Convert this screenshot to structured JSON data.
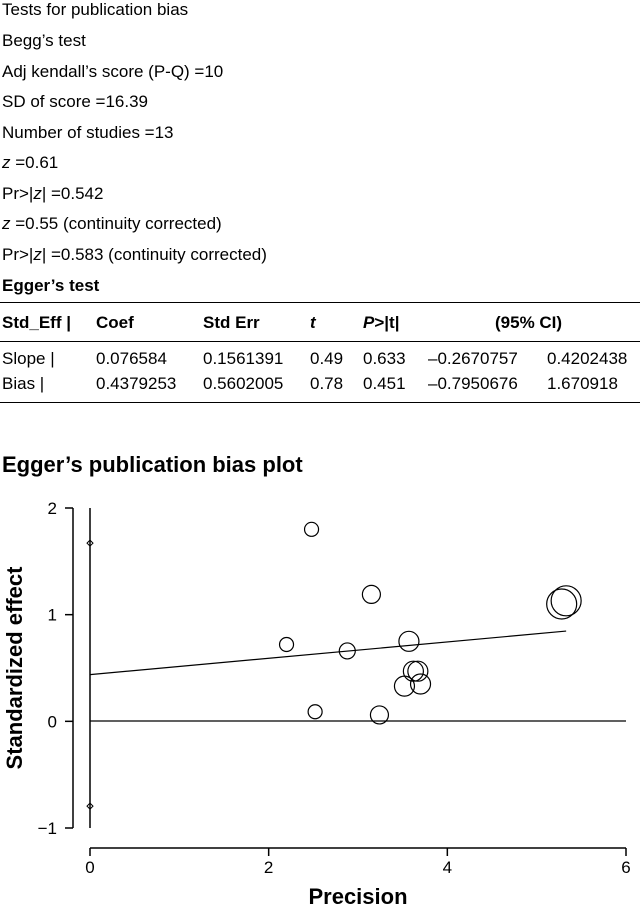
{
  "begg": {
    "heading": "Tests for publication bias",
    "title": "Begg’s test",
    "kendall": "Adj kendall’s score (P-Q) =10",
    "sd": "SD of score =16.39",
    "n": "Number of studies =13",
    "z_var": "z",
    "z_rest": " =0.61",
    "pr_prefix": "Pr>|",
    "pr_var": "z",
    "pr_rest": "| =0.542",
    "zc_var": "z",
    "zc_rest": " =0.55 (continuity corrected)",
    "prc_prefix": "Pr>|",
    "prc_var": "z",
    "prc_rest": "| =0.583 (continuity corrected)"
  },
  "egger": {
    "title": "Egger’s test",
    "headers": {
      "std_eff": "Std_Eff |",
      "coef": "Coef",
      "stderr": "Std Err",
      "t": "t",
      "p_var": "P",
      "p_rest": ">|t|",
      "ci": "(95% CI)"
    },
    "rows": [
      {
        "label": "Slope |",
        "coef": "0.076584",
        "stderr": "0.1561391",
        "t": "0.49",
        "p": "0.633",
        "lo": "–0.2670757",
        "hi": "0.4202438"
      },
      {
        "label": "Bias |",
        "coef": "0.4379253",
        "stderr": "0.5602005",
        "t": "0.78",
        "p": "0.451",
        "lo": "–0.7950676",
        "hi": "1.670918"
      }
    ]
  },
  "chart_data": {
    "type": "scatter",
    "title": "Egger’s publication bias plot",
    "xlabel": "Precision",
    "ylabel": "Standardized effect",
    "xlim": [
      0,
      6
    ],
    "ylim": [
      -1,
      2
    ],
    "xticks": [
      0,
      2,
      4,
      6
    ],
    "yticks": [
      -1,
      0,
      1,
      2
    ],
    "grid": false,
    "points": [
      {
        "x": 2.2,
        "y": 0.72,
        "size": 7
      },
      {
        "x": 2.48,
        "y": 1.8,
        "size": 7
      },
      {
        "x": 2.52,
        "y": 0.09,
        "size": 7
      },
      {
        "x": 2.88,
        "y": 0.66,
        "size": 8
      },
      {
        "x": 3.15,
        "y": 1.19,
        "size": 9
      },
      {
        "x": 3.24,
        "y": 0.06,
        "size": 9
      },
      {
        "x": 3.52,
        "y": 0.33,
        "size": 10
      },
      {
        "x": 3.57,
        "y": 0.75,
        "size": 10
      },
      {
        "x": 3.62,
        "y": 0.47,
        "size": 10
      },
      {
        "x": 3.67,
        "y": 0.47,
        "size": 10
      },
      {
        "x": 3.7,
        "y": 0.35,
        "size": 10
      },
      {
        "x": 5.28,
        "y": 1.1,
        "size": 15
      },
      {
        "x": 5.33,
        "y": 1.13,
        "size": 15
      }
    ],
    "regression_line": {
      "intercept": 0.4379253,
      "slope": 0.076584,
      "x_end": 5.33
    },
    "bias_ci": {
      "x": 0,
      "lo": -0.7950676,
      "hi": 1.670918
    }
  }
}
